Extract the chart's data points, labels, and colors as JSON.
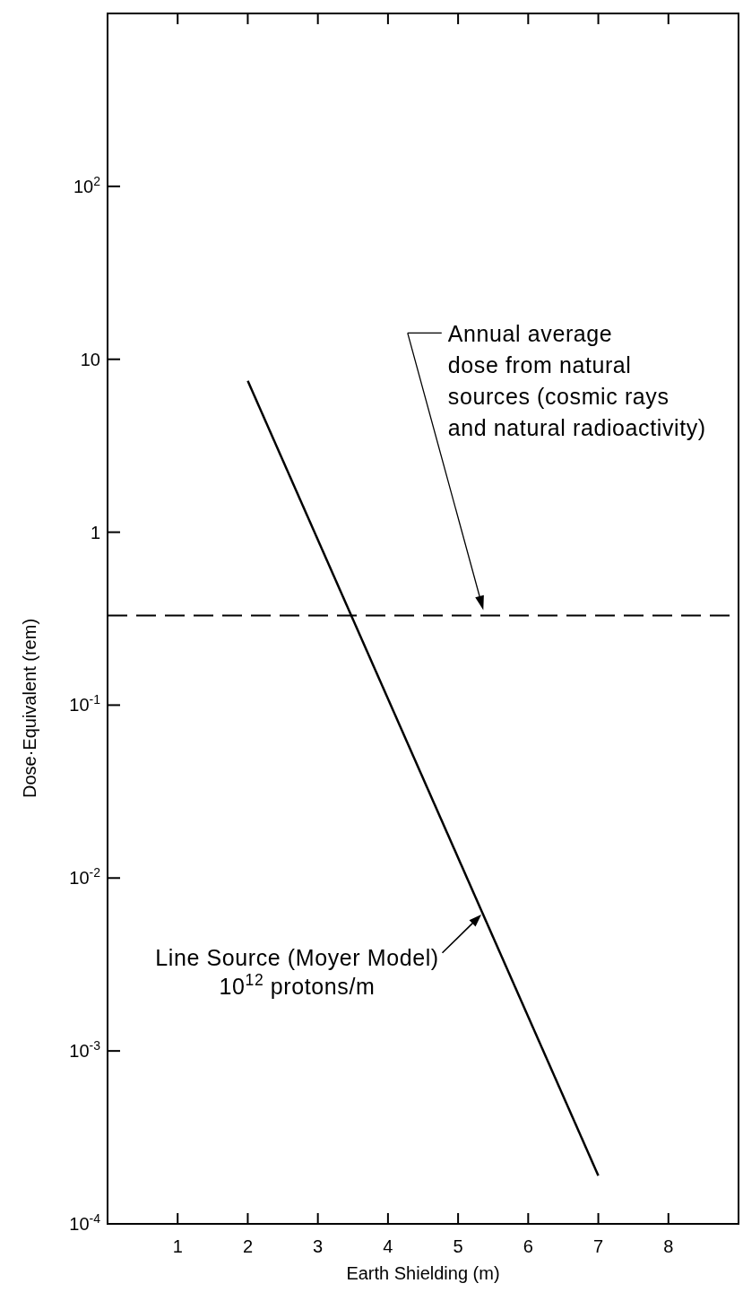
{
  "chart_data": {
    "type": "line",
    "xlabel": "Earth Shielding (m)",
    "ylabel": "Dose·Equivalent  (rem)",
    "log": "y",
    "xlim": [
      0,
      9
    ],
    "xticks": [
      1,
      2,
      3,
      4,
      5,
      6,
      7,
      8
    ],
    "ylim": [
      0.0001,
      1000
    ],
    "yticks": [
      {
        "value": 0.0001,
        "label": "10$^{-4}$"
      },
      {
        "value": 0.001,
        "label": "10$^{-3}$"
      },
      {
        "value": 0.01,
        "label": "10$^{-2}$"
      },
      {
        "value": 0.1,
        "label": "10$^{-1}$"
      },
      1,
      10,
      {
        "value": 100,
        "label": "10$^{2}$"
      }
    ],
    "series": [
      {
        "name": "Line Source (Moyer Model)\n10$^{12}$ protons/m",
        "color": "#000000",
        "x": [
          2,
          7
        ],
        "values": [
          7.5,
          0.00019
        ]
      }
    ],
    "ref_lines": [
      {
        "axis": "y",
        "value": 0.33,
        "label": "Annual average\ndose from natural\nsources (cosmic rays\nand natural radioactivity)",
        "color": "#000000",
        "line_style": "dashed"
      }
    ],
    "grid": false,
    "marker": "none",
    "line_style": "solid"
  }
}
